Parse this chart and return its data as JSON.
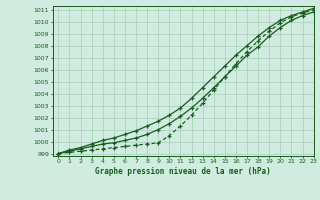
{
  "title": "Graphe pression niveau de la mer (hPa)",
  "bg_color": "#d0ece0",
  "grid_color": "#b0d8c0",
  "line_color": "#1a5c20",
  "xlim": [
    -0.5,
    23
  ],
  "ylim": [
    998.8,
    1011.3
  ],
  "xticks": [
    0,
    1,
    2,
    3,
    4,
    5,
    6,
    7,
    8,
    9,
    10,
    11,
    12,
    13,
    14,
    15,
    16,
    17,
    18,
    19,
    20,
    21,
    22,
    23
  ],
  "yticks": [
    999,
    1000,
    1001,
    1002,
    1003,
    1004,
    1005,
    1006,
    1007,
    1008,
    1009,
    1010,
    1011
  ],
  "series1_x": [
    0,
    1,
    2,
    3,
    4,
    5,
    6,
    7,
    8,
    9,
    10,
    11,
    12,
    13,
    14,
    15,
    16,
    17,
    18,
    19,
    20,
    21,
    22,
    23
  ],
  "series1": [
    999.0,
    999.2,
    999.4,
    999.6,
    999.8,
    999.9,
    1000.1,
    1000.3,
    1000.6,
    1001.0,
    1001.5,
    1002.1,
    1002.8,
    1003.6,
    1004.5,
    1005.4,
    1006.3,
    1007.2,
    1007.9,
    1008.8,
    1009.5,
    1010.1,
    1010.5,
    1010.8
  ],
  "series2_x": [
    0,
    1,
    2,
    3,
    4,
    5,
    6,
    7,
    8,
    9,
    10,
    11,
    12,
    13,
    14,
    15,
    16,
    17,
    18,
    19,
    20,
    21,
    22,
    23
  ],
  "series2": [
    999.0,
    999.1,
    999.2,
    999.3,
    999.4,
    999.5,
    999.6,
    999.7,
    999.8,
    999.9,
    1000.5,
    1001.3,
    1002.2,
    1003.2,
    1004.3,
    1005.4,
    1006.5,
    1007.5,
    1008.4,
    1009.2,
    1009.9,
    1010.4,
    1010.7,
    1011.0
  ],
  "series3_x": [
    0,
    1,
    2,
    3,
    4,
    5,
    6,
    7,
    8,
    9,
    10,
    11,
    12,
    13,
    14,
    15,
    16,
    17,
    18,
    19,
    20,
    21,
    22,
    23
  ],
  "series3": [
    999.0,
    999.3,
    999.5,
    999.8,
    1000.1,
    1000.3,
    1000.6,
    1000.9,
    1001.3,
    1001.7,
    1002.2,
    1002.8,
    1003.6,
    1004.5,
    1005.4,
    1006.3,
    1007.2,
    1008.0,
    1008.8,
    1009.5,
    1010.1,
    1010.5,
    1010.8,
    1011.1
  ]
}
